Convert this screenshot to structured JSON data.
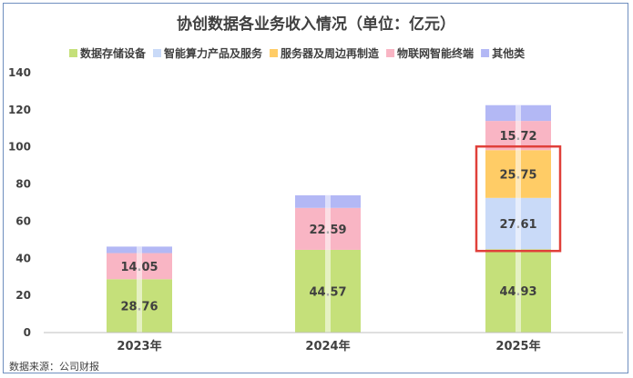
{
  "chart_data": {
    "type": "bar",
    "stacked": true,
    "title": "协创数据各业务收入情况（单位：亿元）",
    "categories": [
      "2023年",
      "2024年",
      "2025年"
    ],
    "series": [
      {
        "name": "数据存储设备",
        "color": "#c5e07a",
        "values": [
          28.76,
          44.57,
          44.93
        ],
        "labels": [
          "28.76",
          "44.57",
          "44.93"
        ]
      },
      {
        "name": "智能算力产品及服务",
        "color": "#c9daf8",
        "values": [
          0,
          0,
          27.61
        ],
        "labels": [
          "",
          "",
          "27.61"
        ]
      },
      {
        "name": "服务器及周边再制造",
        "color": "#ffcc66",
        "values": [
          0,
          0,
          25.75
        ],
        "labels": [
          "",
          "",
          "25.75"
        ]
      },
      {
        "name": "物联网智能终端",
        "color": "#f9b5c4",
        "values": [
          14.05,
          22.59,
          15.72
        ],
        "labels": [
          "14.05",
          "22.59",
          "15.72"
        ]
      },
      {
        "name": "其他类",
        "color": "#b3b8f5",
        "values": [
          3.5,
          6.8,
          8.5
        ],
        "labels": [
          "",
          "",
          ""
        ]
      }
    ],
    "ylim": [
      0,
      140
    ],
    "yticks": [
      "0",
      "20",
      "40",
      "60",
      "80",
      "100",
      "120",
      "140"
    ],
    "xlabel": "",
    "ylabel": "",
    "grid": false,
    "legend_position": "top",
    "highlight": {
      "category": "2025年",
      "series": [
        "智能算力产品及服务",
        "服务器及周边再制造"
      ],
      "color": "#e0403a"
    }
  },
  "source": "数据来源：公司财报"
}
